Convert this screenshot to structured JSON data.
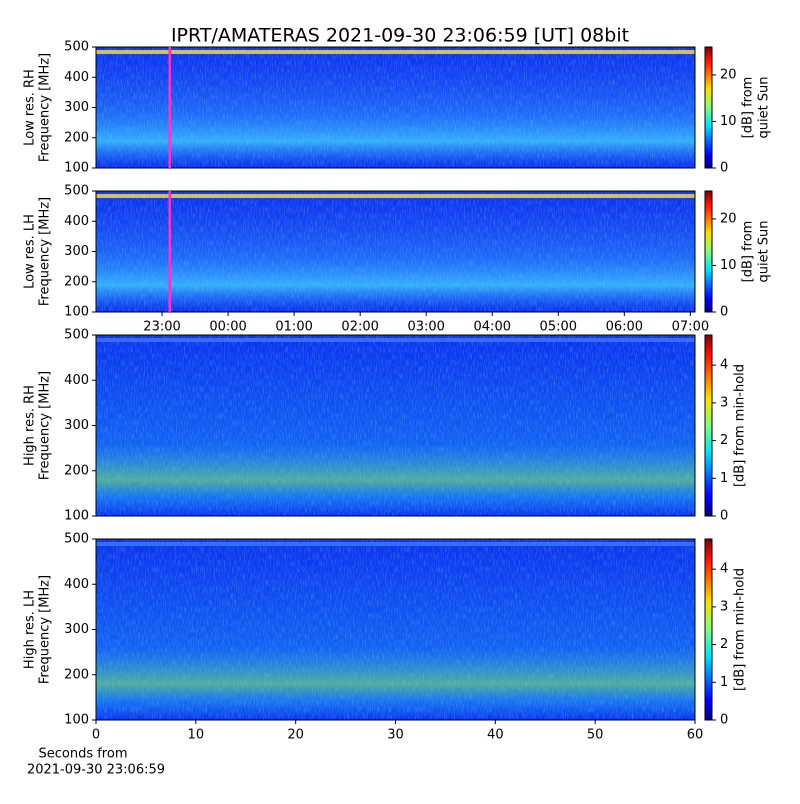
{
  "title": "IPRT/AMATERAS 2021-09-30 23:06:59 [UT]   08bit",
  "chart_data": [
    {
      "type": "heatmap",
      "colormap": "jet",
      "ylabel": [
        "Low res. RH",
        "Frequency [MHz]"
      ],
      "ylim": [
        100,
        500
      ],
      "yticks": [
        100,
        200,
        300,
        400,
        500
      ],
      "xlim": [
        22,
        31.07
      ],
      "clabel": [
        "[dB] from",
        "quiet Sun"
      ],
      "clim": [
        0,
        26
      ],
      "cticks": [
        0,
        10,
        20
      ],
      "marker_x": 23.1164,
      "marker_color": "#ff33cc"
    },
    {
      "type": "heatmap",
      "colormap": "jet",
      "ylabel": [
        "Low res. LH",
        "Frequency [MHz]"
      ],
      "ylim": [
        100,
        500
      ],
      "yticks": [
        100,
        200,
        300,
        400,
        500
      ],
      "xlim": [
        22,
        31.07
      ],
      "xticks": [
        {
          "value": 23,
          "label": "23:00"
        },
        {
          "value": 24,
          "label": "00:00"
        },
        {
          "value": 25,
          "label": "01:00"
        },
        {
          "value": 26,
          "label": "02:00"
        },
        {
          "value": 27,
          "label": "03:00"
        },
        {
          "value": 28,
          "label": "04:00"
        },
        {
          "value": 29,
          "label": "05:00"
        },
        {
          "value": 30,
          "label": "06:00"
        },
        {
          "value": 31,
          "label": "07:00"
        }
      ],
      "clabel": [
        "[dB] from",
        "quiet Sun"
      ],
      "clim": [
        0,
        26
      ],
      "cticks": [
        0,
        10,
        20
      ],
      "marker_x": 23.1164,
      "marker_color": "#ff33cc"
    },
    {
      "type": "heatmap",
      "colormap": "jet",
      "ylabel": [
        "High res. RH",
        "Frequency [MHz]"
      ],
      "ylim": [
        100,
        500
      ],
      "yticks": [
        100,
        200,
        300,
        400,
        500
      ],
      "xlim": [
        0,
        60
      ],
      "clabel": [
        "[dB] from min-hold"
      ],
      "clim": [
        0,
        4.8
      ],
      "cticks": [
        0,
        1,
        2,
        3,
        4
      ]
    },
    {
      "type": "heatmap",
      "colormap": "jet",
      "ylabel": [
        "High res. LH",
        "Frequency [MHz]"
      ],
      "ylim": [
        100,
        500
      ],
      "yticks": [
        100,
        200,
        300,
        400,
        500
      ],
      "xlim": [
        0,
        60
      ],
      "xticks": [
        0,
        10,
        20,
        30,
        40,
        50,
        60
      ],
      "xlabel": [
        "Seconds from",
        "2021-09-30 23:06:59"
      ],
      "clabel": [
        "[dB] from min-hold"
      ],
      "clim": [
        0,
        4.8
      ],
      "cticks": [
        0,
        1,
        2,
        3,
        4
      ]
    }
  ]
}
